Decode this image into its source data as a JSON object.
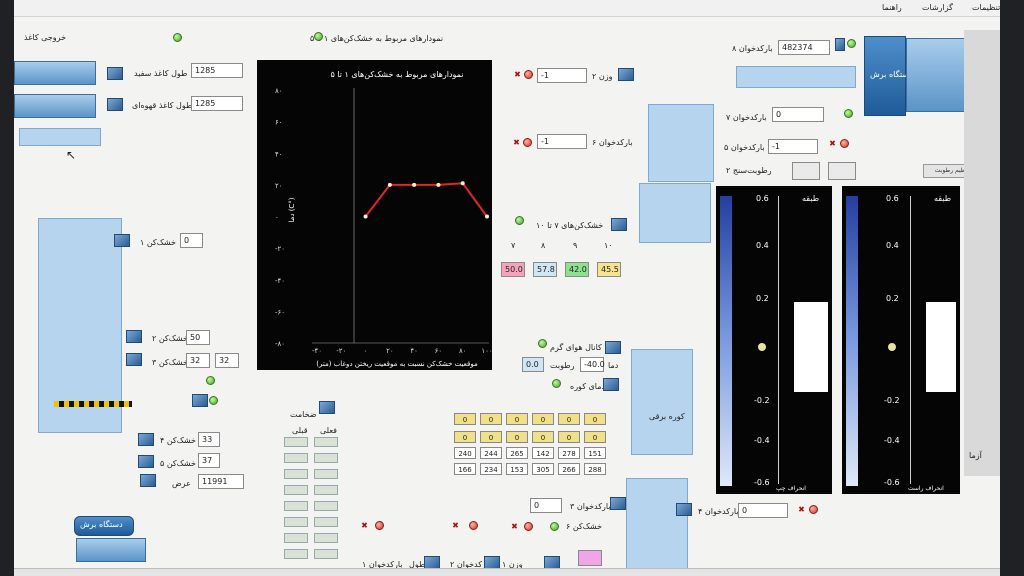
{
  "menu": {
    "items": [
      "تنظیمات",
      "گزارشات",
      "راهنما"
    ]
  },
  "left": {
    "output_label": "خروجی کاغذ",
    "white_len_label": "طول کاغذ سفید",
    "white_len_value": "1285",
    "brown_len_label": "طول کاغذ قهوه‌ای",
    "brown_len_value": "1285",
    "dryer1_label": "خشک‌کن ۱",
    "dryer1_value": "0",
    "dryer2_label": "خشک‌کن ۲",
    "dryer2_value": "50",
    "dryer3_label": "خشک‌کن ۳",
    "dryer3_v1": "32",
    "dryer3_v2": "32",
    "dryer4_label": "خشک‌کن ۴",
    "dryer4_value": "33",
    "dryer5_label": "خشک‌کن ۵",
    "dryer5_value": "37",
    "width_label": "عرض",
    "width_value": "11991",
    "cut_machine_label": "دستگاه برش"
  },
  "chart_panel": {
    "title": "نمودارهای مربوط به خشک‌کن‌های ۱ تا ۵"
  },
  "chart_data": {
    "type": "line",
    "title": "نمودارهای مربوط به خشک‌کن‌های ۱ تا ۵",
    "xlabel": "موقعیت خشک‌کن نسبت به موقعیت ریختن دوغاب (متر)",
    "ylabel": "دما (C°)",
    "x": [
      0,
      20,
      40,
      60,
      80,
      100
    ],
    "values": [
      0,
      20,
      20,
      20,
      21,
      0
    ],
    "x_ticks": [
      "-۴۰",
      "-۲۰",
      "۰",
      "۲۰",
      "۴۰",
      "۶۰",
      "۸۰",
      "۱۰۰"
    ],
    "y_ticks": [
      "۸۰",
      "۶۰",
      "۴۰",
      "۲۰",
      "۰",
      "-۲۰",
      "-۴۰",
      "-۶۰",
      "-۸۰"
    ],
    "xlim": [
      -40,
      100
    ],
    "ylim": [
      -80,
      80
    ],
    "line_color": "#e0262b"
  },
  "mid": {
    "weight2_label": "وزن ۲",
    "weight2_value": "-1",
    "barcode6_label": "بارکدخوان ۶",
    "barcode6_value": "-1",
    "dryers_group_label": "خشک‌کن‌های ۷ تا ۱۰",
    "dryer_cols": [
      "۷",
      "۸",
      "۹",
      "۱۰"
    ],
    "dryer_vals": [
      "50.0",
      "57.8",
      "42.0",
      "45.5"
    ],
    "dryer_colors": [
      "#f7a1bf",
      "#cfe6f4",
      "#8fe08f",
      "#f5e38f"
    ],
    "hot_air_label": "کانال هوای گرم",
    "temp_label": "دما",
    "temp_value": "-40.0",
    "humid_label": "رطوبت",
    "humid_value": "0.0",
    "oven_temp_label": "دمای کوره",
    "oven_label": "کوره برقی",
    "pressure_label": "ضخامت",
    "front_label": "فعلی",
    "back_label": "قبلی",
    "row_zero": [
      "0",
      "0",
      "0",
      "0",
      "0",
      "0"
    ],
    "row2": [
      "240",
      "244",
      "265",
      "142",
      "278",
      "151"
    ],
    "row3": [
      "166",
      "234",
      "153",
      "305",
      "266",
      "288"
    ],
    "barcode3_label": "بارکدخوان ۳",
    "barcode3_value": "0",
    "dryer6_label": "خشک‌کن ۶",
    "barcode2_label": "بارکدخوان ۲",
    "weight1_label": "وزن ۱",
    "barcode1_label": "بارکدخوان ۱",
    "len_label": "طول"
  },
  "right": {
    "barcode8_label": "بارکدخوان ۸",
    "barcode8_value": "482374",
    "cut_machine_label": "دستگاه برش",
    "barcode7_label": "بارکدخوان ۷",
    "barcode7_value": "0",
    "barcode5_label": "بارکدخوان ۵",
    "barcode5_value": "-1",
    "humidity2_label": "رطوبت‌سنج ۲",
    "btn_label": "تنظیم رطوبت",
    "barcode4_label": "بارکدخوان ۴",
    "barcode4_value": "0",
    "gauge_left_title": "طبقه",
    "gauge_right_title": "طبقه",
    "gauge_ticks_top": [
      "0.6",
      "0.4",
      "0.2"
    ],
    "gauge_ticks_bottom": [
      "-0.2",
      "-0.4",
      "-0.6"
    ],
    "gauge_left_caption": "انحراف چپ",
    "gauge_right_caption": "انحراف راست",
    "side_label": "آزما"
  }
}
